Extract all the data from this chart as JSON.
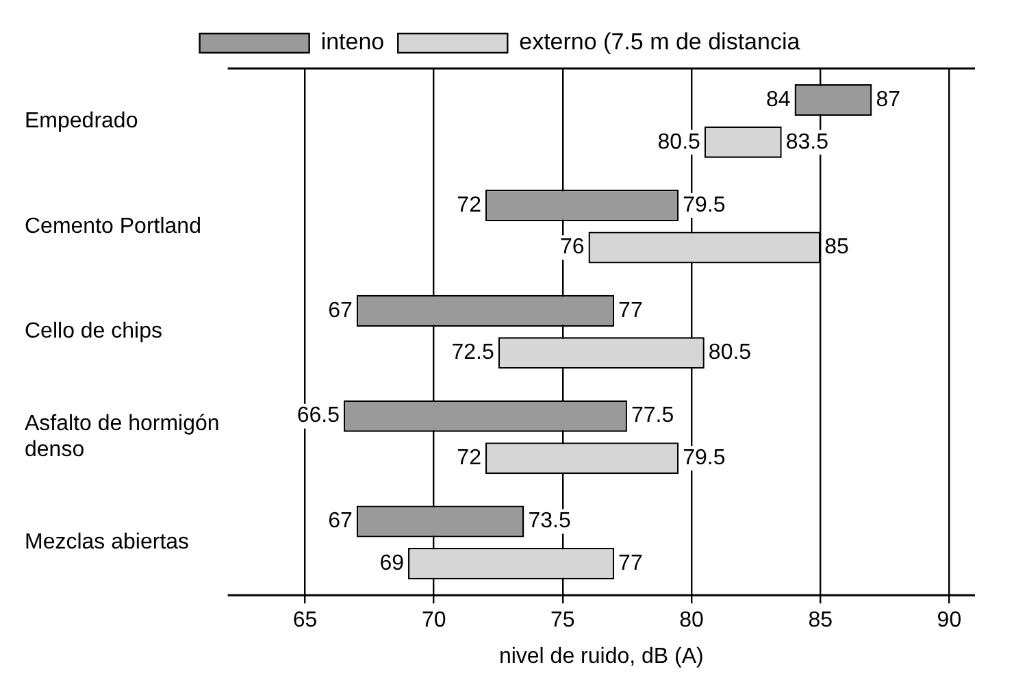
{
  "chart_data": {
    "type": "bar",
    "orientation": "horizontal",
    "xlabel": "nivel de ruido, dB (A)",
    "categories": [
      "Empedrado",
      "Cemento Portland",
      "Cello de chips",
      "Asfalto de hormigón denso",
      "Mezclas abiertas"
    ],
    "series": [
      {
        "name": "inteno",
        "color": "#9a9a9a",
        "base": [
          84,
          72,
          67,
          66.5,
          67
        ],
        "values": [
          3,
          7.5,
          10,
          11,
          6.5
        ]
      },
      {
        "name": "externo (7.5 m de distancia",
        "color": "#d6d6d6",
        "base": [
          80.5,
          76,
          72.5,
          72,
          69
        ],
        "values": [
          3,
          9,
          8,
          7.5,
          8
        ]
      }
    ],
    "xlim": [
      62,
      91
    ],
    "xticks": [
      65,
      70,
      75,
      80,
      85,
      90
    ],
    "grid": "x",
    "legend": "top",
    "annotations": [
      "84",
      "87",
      "80.5",
      "83.5",
      "72",
      "79.5",
      "76",
      "85",
      "67",
      "77",
      "72.5",
      "80.5",
      "66.5",
      "77.5",
      "72",
      "79.5",
      "67",
      "73.5",
      "69",
      "77"
    ]
  }
}
